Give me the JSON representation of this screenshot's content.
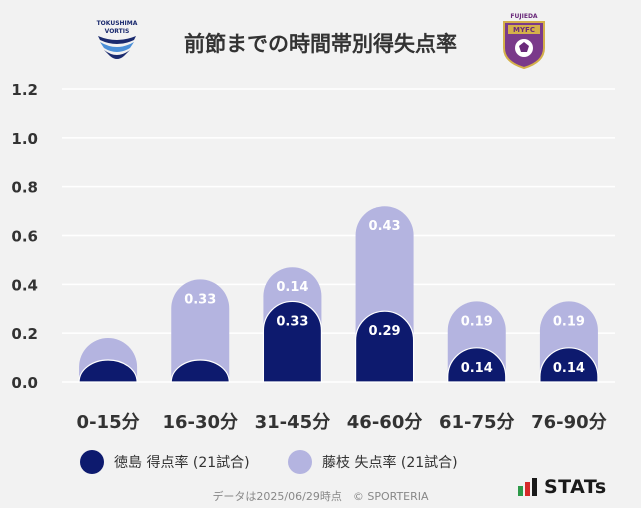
{
  "title": "前節までの時間帯別得失点率",
  "logos": {
    "left_text_1": "TOKUSHIMA",
    "left_text_2": "VORTIS",
    "right_text_1": "FUJIEDA",
    "right_text_2": "MYFC"
  },
  "colors": {
    "background": "#f2f2f2",
    "team_a": "#0d1a6e",
    "team_b": "#b4b4e0",
    "grid": "#ffffff",
    "axis_text": "#333333"
  },
  "chart_data": {
    "type": "bar",
    "categories": [
      "0-15分",
      "16-30分",
      "31-45分",
      "46-60分",
      "61-75分",
      "76-90分"
    ],
    "series": [
      {
        "name": "徳島 得点率 (21試合)",
        "values": [
          0.0,
          0.0,
          0.33,
          0.29,
          0.14,
          0.14
        ],
        "labels": [
          "",
          "",
          "0.33",
          "0.29",
          "0.14",
          "0.14"
        ]
      },
      {
        "name": "藤枝 失点率 (21試合)",
        "values": [
          0.0,
          0.33,
          0.14,
          0.43,
          0.19,
          0.19
        ],
        "labels": [
          "",
          "0.33",
          "0.14",
          "0.43",
          "0.19",
          "0.19"
        ]
      }
    ],
    "yticks": [
      "0.0",
      "0.2",
      "0.4",
      "0.6",
      "0.8",
      "1.0",
      "1.2"
    ],
    "ylim": [
      0,
      1.2
    ],
    "grid": true,
    "legend_position": "bottom"
  },
  "footer": {
    "note": "データは2025/06/29時点　© SPORTERIA",
    "brand": "STATs"
  }
}
